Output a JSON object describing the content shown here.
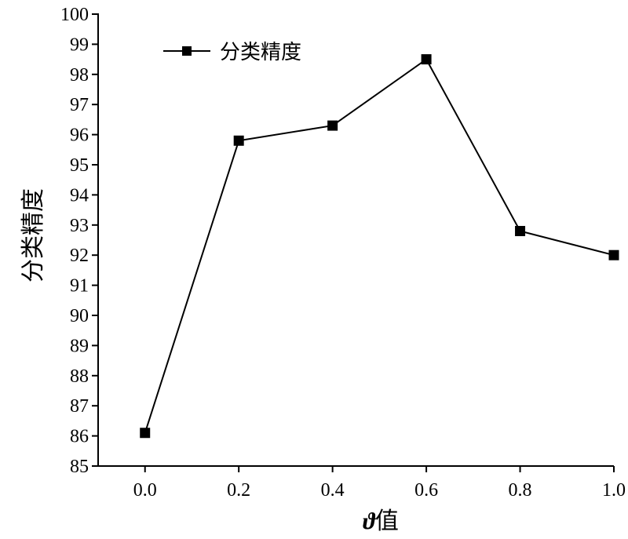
{
  "chart_data": {
    "type": "line",
    "x": [
      0.0,
      0.2,
      0.4,
      0.6,
      0.8,
      1.0
    ],
    "series": [
      {
        "name": "分类精度",
        "values": [
          86.1,
          95.8,
          96.3,
          98.5,
          92.8,
          92.0
        ]
      }
    ],
    "xlabel_symbol": "ϑ",
    "xlabel_text": "值",
    "ylabel": "分类精度",
    "xlim": [
      -0.1,
      1.0
    ],
    "ylim": [
      85,
      100
    ],
    "x_ticks": [
      "0.0",
      "0.2",
      "0.4",
      "0.6",
      "0.8",
      "1.0"
    ],
    "y_ticks": [
      "85",
      "86",
      "87",
      "88",
      "89",
      "90",
      "91",
      "92",
      "93",
      "94",
      "95",
      "96",
      "97",
      "98",
      "99",
      "100"
    ],
    "grid": false,
    "legend_position": "top-left",
    "line_color": "#000000",
    "marker": "square"
  }
}
